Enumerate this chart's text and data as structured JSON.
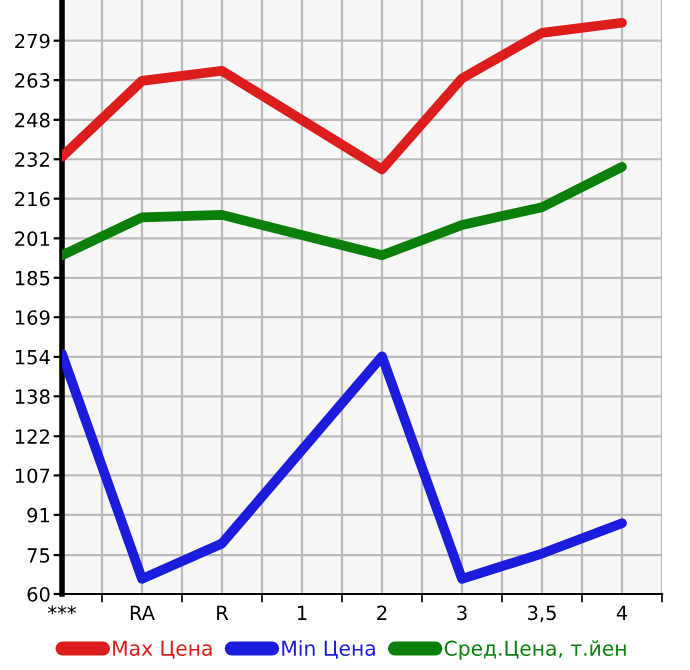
{
  "chart_data": {
    "type": "line",
    "categories": [
      "***",
      "RA",
      "R",
      "1",
      "2",
      "3",
      "3,5",
      "4"
    ],
    "series": [
      {
        "name": "Max Цена",
        "color": "#dd1c1c",
        "values": [
          233,
          263,
          267,
          null,
          228,
          264,
          282,
          286
        ]
      },
      {
        "name": "Min Цена",
        "color": "#1c1cdd",
        "values": [
          155,
          66,
          80,
          null,
          154,
          66,
          76,
          88
        ]
      },
      {
        "name": "Сред.Цена, т.йен",
        "color": "#0a800a",
        "values": [
          194,
          209,
          210,
          null,
          194,
          206,
          213,
          229
        ]
      }
    ],
    "ylim": [
      60,
      295
    ],
    "yticks": [
      60,
      {
        "value": 75.4,
        "label": "75"
      },
      {
        "value": 91.3,
        "label": "91"
      },
      {
        "value": 106.9,
        "label": "107"
      },
      {
        "value": 122.4,
        "label": "122"
      },
      {
        "value": 138.2,
        "label": "138"
      },
      {
        "value": 153.8,
        "label": "154"
      },
      {
        "value": 169.5,
        "label": "169"
      },
      {
        "value": 185.1,
        "label": "185"
      },
      {
        "value": 200.7,
        "label": "201"
      },
      {
        "value": 216.4,
        "label": "216"
      },
      232,
      {
        "value": 247.6,
        "label": "248"
      },
      {
        "value": 263.3,
        "label": "263"
      },
      {
        "value": 278.9,
        "label": "279"
      }
    ],
    "grid": true,
    "legend": "bottom",
    "marker": "none",
    "line_style": "solid"
  }
}
